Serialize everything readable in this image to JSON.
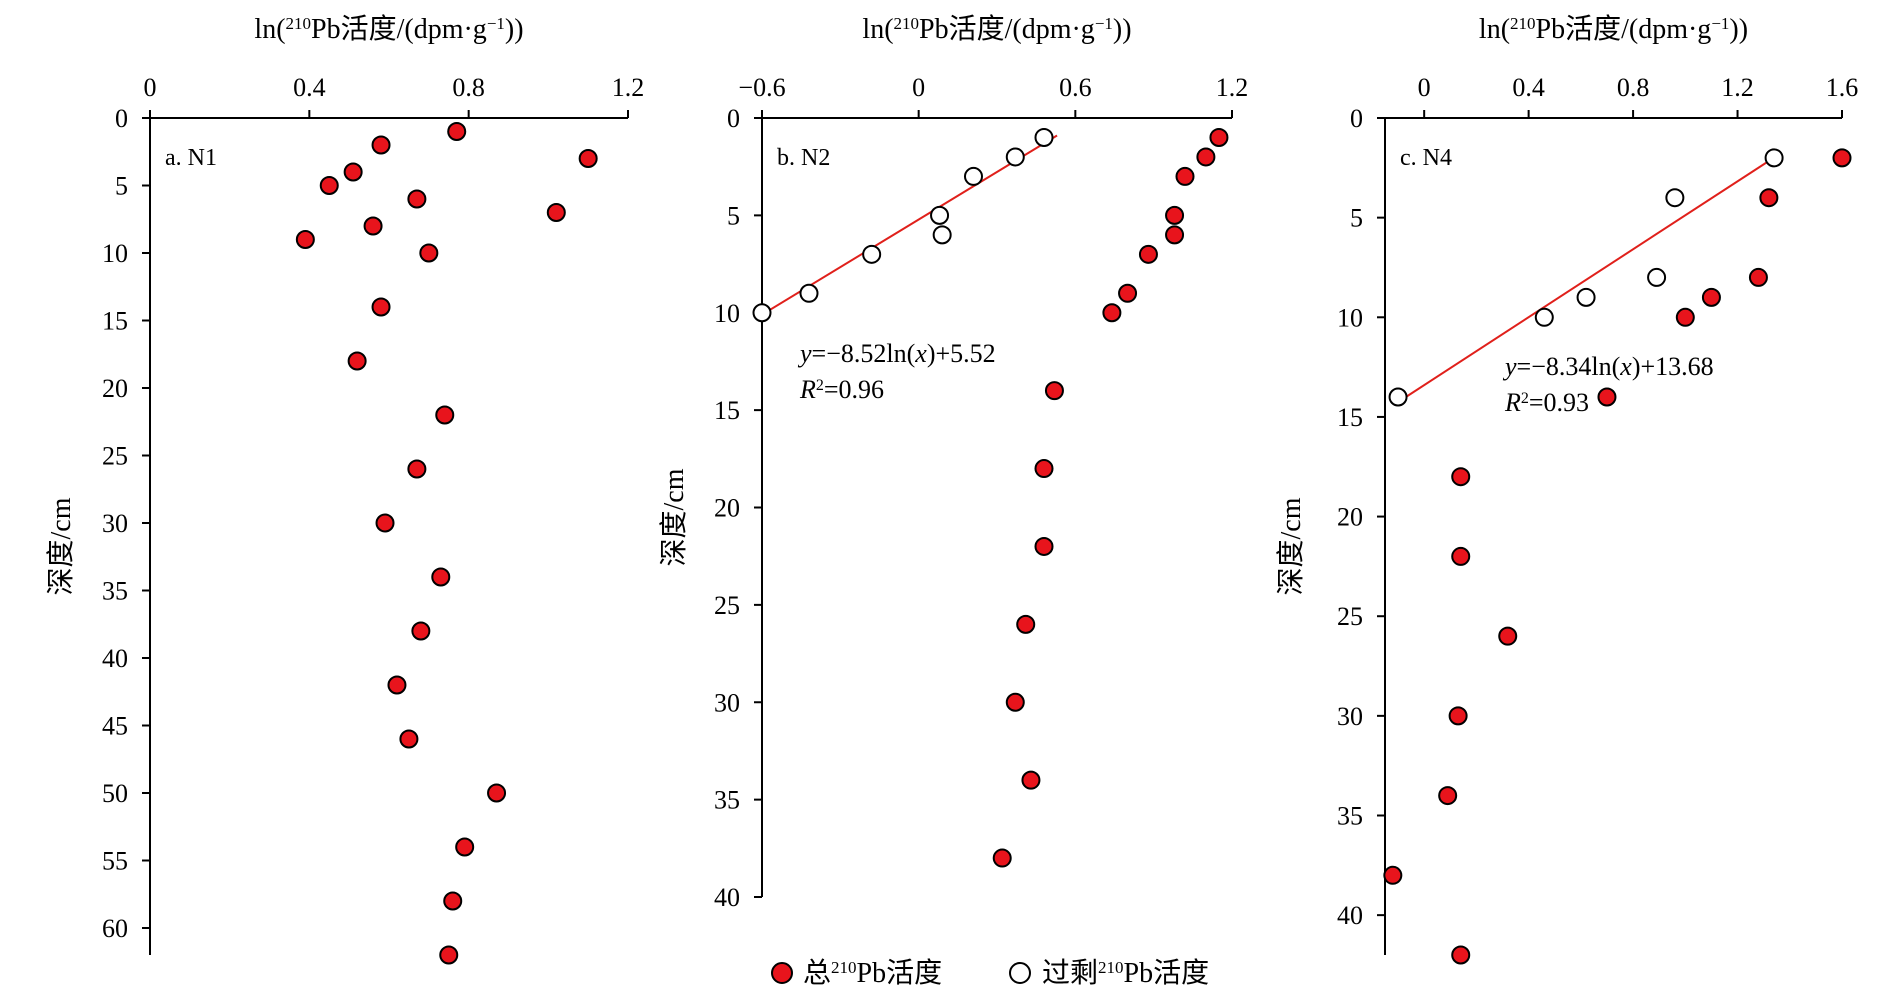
{
  "chart_data": [
    {
      "type": "scatter",
      "panel_label": "a. N1",
      "xlabel": {
        "pre": "ln(",
        "sup": "210",
        "post": "Pb活度/(dpm·g",
        "sup2": "−1",
        "end": "))"
      },
      "ylabel": "深度/cm",
      "xlim": [
        0,
        1.2
      ],
      "xticks": [
        "0",
        "0.4",
        "0.8",
        "1.2"
      ],
      "xtick_values": [
        0,
        0.4,
        0.8,
        1.2
      ],
      "ylim": [
        0,
        62
      ],
      "yticks": [
        "0",
        "5",
        "10",
        "15",
        "20",
        "25",
        "30",
        "35",
        "40",
        "45",
        "50",
        "55",
        "60"
      ],
      "ytick_values": [
        0,
        5,
        10,
        15,
        20,
        25,
        30,
        35,
        40,
        45,
        50,
        55,
        60
      ],
      "series": [
        {
          "name": "总210Pb活度",
          "marker": "filled",
          "x": [
            0.77,
            0.58,
            1.1,
            0.51,
            0.45,
            0.67,
            1.02,
            0.56,
            0.39,
            0.7,
            0.58,
            0.52,
            0.74,
            0.67,
            0.59,
            0.73,
            0.68,
            0.62,
            0.65,
            0.87,
            0.79,
            0.76,
            0.75
          ],
          "y": [
            1,
            2,
            3,
            4,
            5,
            6,
            7,
            8,
            9,
            10,
            14,
            18,
            22,
            26,
            30,
            34,
            38,
            42,
            46,
            50,
            54,
            58,
            62
          ]
        }
      ]
    },
    {
      "type": "scatter",
      "panel_label": "b. N2",
      "xlabel": {
        "pre": "ln(",
        "sup": "210",
        "post": "Pb活度/(dpm·g",
        "sup2": "−1",
        "end": "))"
      },
      "ylabel": "深度/cm",
      "xlim": [
        -0.6,
        1.2
      ],
      "xticks": [
        "−0.6",
        "0",
        "0.6",
        "1.2"
      ],
      "xtick_values": [
        -0.6,
        0,
        0.6,
        1.2
      ],
      "ylim": [
        0,
        40
      ],
      "yticks": [
        "0",
        "5",
        "10",
        "15",
        "20",
        "25",
        "30",
        "35",
        "40"
      ],
      "ytick_values": [
        0,
        5,
        10,
        15,
        20,
        25,
        30,
        35,
        40
      ],
      "series": [
        {
          "name": "总210Pb活度",
          "marker": "filled",
          "x": [
            1.15,
            1.1,
            1.02,
            0.98,
            0.98,
            0.88,
            0.8,
            0.74,
            0.52,
            0.48,
            0.48,
            0.41,
            0.37,
            0.43,
            0.32
          ],
          "y": [
            1,
            2,
            3,
            5,
            6,
            7,
            9,
            10,
            14,
            18,
            22,
            26,
            30,
            34,
            38
          ]
        },
        {
          "name": "过剩210Pb活度",
          "marker": "open",
          "x": [
            0.48,
            0.37,
            0.21,
            0.08,
            0.09,
            -0.18,
            -0.42,
            -0.6
          ],
          "y": [
            1,
            2,
            3,
            5,
            6,
            7,
            9,
            10
          ]
        }
      ],
      "fit": {
        "equation_y": "y",
        "equation_rest": "=−8.52ln(",
        "equation_x": "x",
        "equation_end": ")+5.52",
        "r2_r": "R",
        "r2_sup": "2",
        "r2_value": "=0.96",
        "x": [
          -0.6,
          0.53
        ],
        "y": [
          10.1,
          0.9
        ],
        "color": "#e0201b"
      }
    },
    {
      "type": "scatter",
      "panel_label": "c. N4",
      "xlabel": {
        "pre": "ln(",
        "sup": "210",
        "post": "Pb活度/(dpm·g",
        "sup2": "−1",
        "end": "))"
      },
      "ylabel": "深度/cm",
      "xlim": [
        -0.15,
        1.6
      ],
      "xticks": [
        "0",
        "0.4",
        "0.8",
        "1.2",
        "1.6"
      ],
      "xtick_values": [
        0,
        0.4,
        0.8,
        1.2,
        1.6
      ],
      "ylim": [
        0,
        42
      ],
      "yticks": [
        "0",
        "5",
        "10",
        "15",
        "20",
        "25",
        "30",
        "35",
        "40"
      ],
      "ytick_values": [
        0,
        5,
        10,
        15,
        20,
        25,
        30,
        35,
        40
      ],
      "series": [
        {
          "name": "总210Pb活度",
          "marker": "filled",
          "x": [
            1.6,
            1.32,
            1.28,
            1.1,
            1.0,
            0.7,
            0.14,
            0.14,
            0.32,
            0.13,
            0.09,
            -0.12,
            0.14
          ],
          "y": [
            2,
            4,
            8,
            9,
            10,
            14,
            18,
            22,
            26,
            30,
            34,
            38,
            42
          ]
        },
        {
          "name": "过剩210Pb活度",
          "marker": "open",
          "x": [
            1.34,
            0.96,
            0.89,
            0.62,
            0.46,
            -0.1
          ],
          "y": [
            2,
            4,
            8,
            9,
            10,
            14
          ]
        }
      ],
      "fit": {
        "equation_y": "y",
        "equation_rest": "=−8.34ln(",
        "equation_x": "x",
        "equation_end": ")+13.68",
        "r2_r": "R",
        "r2_sup": "2",
        "r2_value": "=0.93",
        "x": [
          -0.07,
          1.35
        ],
        "y": [
          14.0,
          1.9
        ],
        "color": "#e0201b"
      }
    }
  ],
  "legend": {
    "items": [
      {
        "marker": "filled",
        "pre": "总",
        "sup": "210",
        "post": "Pb活度"
      },
      {
        "marker": "open",
        "pre": "过剩",
        "sup": "210",
        "post": "Pb活度"
      }
    ],
    "placement": "bottom-center"
  },
  "colors": {
    "filled_marker": "#e8141c",
    "marker_edge": "#000000",
    "fit_line": "#e0201b",
    "axis": "#000000"
  }
}
